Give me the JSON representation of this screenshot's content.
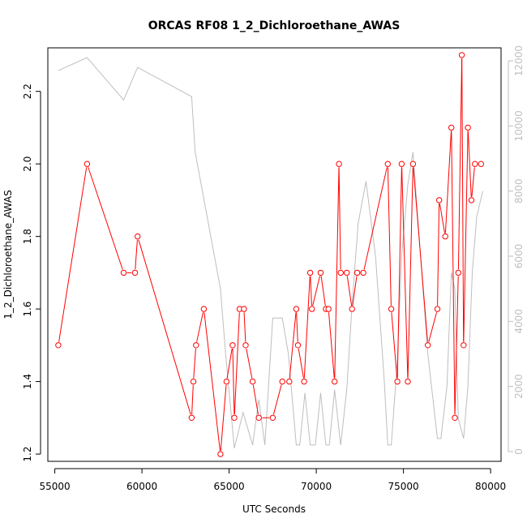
{
  "chart_data": {
    "type": "line",
    "title": "ORCAS RF08 1_2_Dichloroethane_AWAS",
    "xlabel": "UTC Seconds",
    "ylabel": "1_2_Dichloroethane_AWAS",
    "xlim": [
      54600,
      80600
    ],
    "ylim": [
      1.18,
      2.32
    ],
    "y2lim": [
      -300,
      12400
    ],
    "xticks": [
      55000,
      60000,
      65000,
      70000,
      75000,
      80000
    ],
    "xtick_labels": [
      "55000",
      "60000",
      "65000",
      "70000",
      "75000",
      "80000"
    ],
    "yticks": [
      1.2,
      1.4,
      1.6,
      1.8,
      2.0,
      2.2
    ],
    "ytick_labels": [
      "1.2",
      "1.4",
      "1.6",
      "1.8",
      "2.0",
      "2.2"
    ],
    "y2ticks": [
      0,
      2000,
      4000,
      6000,
      8000,
      10000,
      12000
    ],
    "y2tick_labels": [
      "0",
      "2000",
      "4000",
      "6000",
      "8000",
      "10000",
      "12000"
    ],
    "colors": {
      "primary": "#ff0000",
      "secondary": "#bebebe",
      "axis": "#000000"
    },
    "series": [
      {
        "name": "1_2_Dichloroethane_AWAS",
        "axis": "left",
        "style": "line+open-circle",
        "x": [
          55200,
          56850,
          58950,
          59600,
          59750,
          62850,
          62950,
          63100,
          63550,
          64500,
          64850,
          65200,
          65300,
          65600,
          65850,
          65950,
          66350,
          66700,
          67500,
          68050,
          68450,
          68850,
          68950,
          69300,
          69650,
          69750,
          70250,
          70550,
          70700,
          71050,
          71300,
          71400,
          71750,
          72050,
          72350,
          72700,
          74100,
          74300,
          74650,
          74900,
          75250,
          75550,
          76400,
          76950,
          77050,
          77400,
          77750,
          77950,
          78150,
          78350,
          78450,
          78700,
          78900,
          79100,
          79450
        ],
        "y": [
          1.5,
          2.0,
          1.7,
          1.7,
          1.8,
          1.3,
          1.4,
          1.5,
          1.6,
          1.2,
          1.4,
          1.5,
          1.3,
          1.6,
          1.6,
          1.5,
          1.4,
          1.3,
          1.3,
          1.4,
          1.4,
          1.6,
          1.5,
          1.4,
          1.7,
          1.6,
          1.7,
          1.6,
          1.6,
          1.4,
          2.0,
          1.7,
          1.7,
          1.6,
          1.7,
          1.7,
          2.0,
          1.6,
          1.4,
          2.0,
          1.4,
          2.0,
          1.5,
          1.6,
          1.9,
          1.8,
          2.1,
          1.3,
          1.7,
          2.3,
          1.5,
          2.1,
          1.9,
          2.0,
          2.0
        ]
      },
      {
        "name": "secondary",
        "axis": "right",
        "style": "line",
        "x": [
          55200,
          56850,
          58950,
          59750,
          62850,
          63050,
          64500,
          64800,
          65300,
          65800,
          66350,
          66700,
          67050,
          67500,
          68050,
          68400,
          68850,
          69050,
          69350,
          69650,
          69950,
          70250,
          70550,
          70750,
          71050,
          71400,
          71750,
          72050,
          72400,
          72850,
          73400,
          73900,
          74100,
          74300,
          74650,
          74900,
          75250,
          75550,
          76050,
          76400,
          76950,
          77150,
          77500,
          77750,
          77950,
          78150,
          78450,
          78700,
          78950,
          79200,
          79550
        ],
        "y": [
          11700,
          12100,
          10800,
          11800,
          10900,
          9200,
          5000,
          3000,
          100,
          1200,
          200,
          1600,
          200,
          4100,
          4100,
          3000,
          200,
          200,
          1800,
          200,
          200,
          1800,
          200,
          200,
          1900,
          200,
          1900,
          4500,
          7000,
          8300,
          6000,
          2200,
          200,
          200,
          2800,
          6000,
          8200,
          9200,
          5500,
          3000,
          400,
          400,
          2000,
          5500,
          5000,
          1000,
          400,
          2000,
          5500,
          7200,
          8000
        ]
      }
    ]
  }
}
